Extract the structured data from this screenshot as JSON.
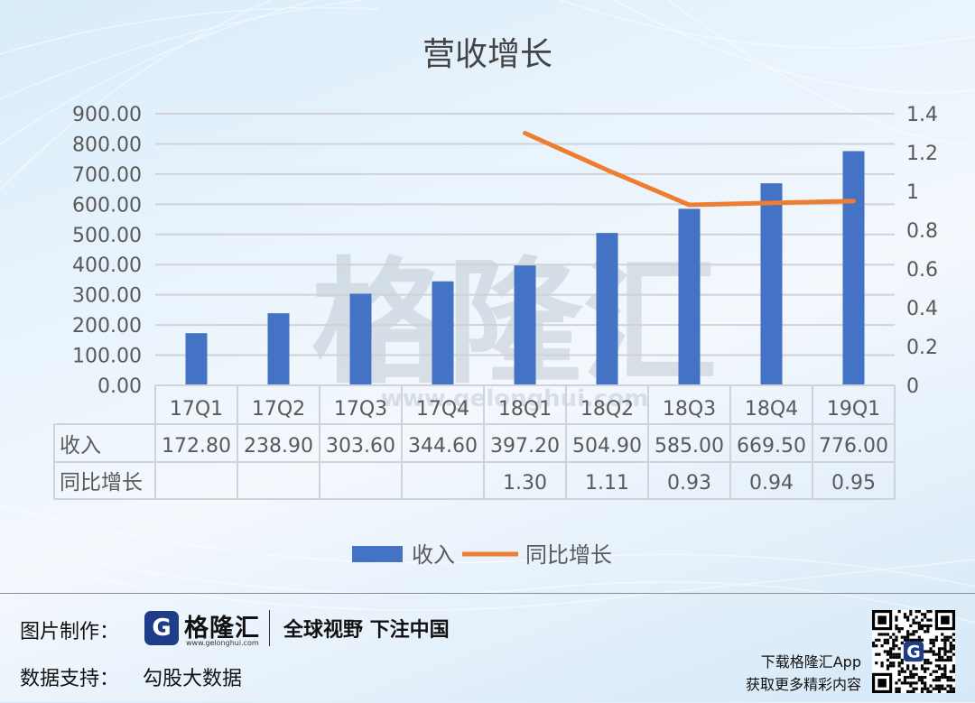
{
  "chart_data": {
    "type": "bar",
    "title": "营收增长",
    "categories": [
      "17Q1",
      "17Q2",
      "17Q3",
      "17Q4",
      "18Q1",
      "18Q2",
      "18Q3",
      "18Q4",
      "19Q1"
    ],
    "series": [
      {
        "name": "收入",
        "type": "bar",
        "axis": "left",
        "color": "#4472c4",
        "values": [
          172.8,
          238.9,
          303.6,
          344.6,
          397.2,
          504.9,
          585.0,
          669.5,
          776.0
        ],
        "labels": [
          "172.80",
          "238.90",
          "303.60",
          "344.60",
          "397.20",
          "504.90",
          "585.00",
          "669.50",
          "776.00"
        ]
      },
      {
        "name": "同比增长",
        "type": "line",
        "axis": "right",
        "color": "#ed7d31",
        "values": [
          null,
          null,
          null,
          null,
          1.3,
          1.11,
          0.93,
          0.94,
          0.95
        ],
        "labels": [
          "",
          "",
          "",
          "",
          "1.30",
          "1.11",
          "0.93",
          "0.94",
          "0.95"
        ]
      }
    ],
    "y_left": {
      "min": 0,
      "max": 900,
      "ticks": [
        "0.00",
        "100.00",
        "200.00",
        "300.00",
        "400.00",
        "500.00",
        "600.00",
        "700.00",
        "800.00",
        "900.00"
      ]
    },
    "y_right": {
      "min": 0,
      "max": 1.4,
      "ticks": [
        "0",
        "0.2",
        "0.4",
        "0.6",
        "0.8",
        "1",
        "1.2",
        "1.4"
      ]
    },
    "grid": true,
    "legend_position": "bottom",
    "data_table": true,
    "watermark": {
      "text": "格隆汇",
      "url": "www.gelonghui.com"
    }
  },
  "footer": {
    "image_label": "图片制作：",
    "data_label": "数据支持：",
    "data_source": "勾股大数据",
    "logo_letter": "G",
    "logo_name": "格隆汇",
    "logo_url": "www.gelonghui.com",
    "slogan": "全球视野 下注中国",
    "app_line1": "下载格隆汇App",
    "app_line2": "获取更多精彩内容",
    "qr_icon": "qr-code-icon"
  }
}
